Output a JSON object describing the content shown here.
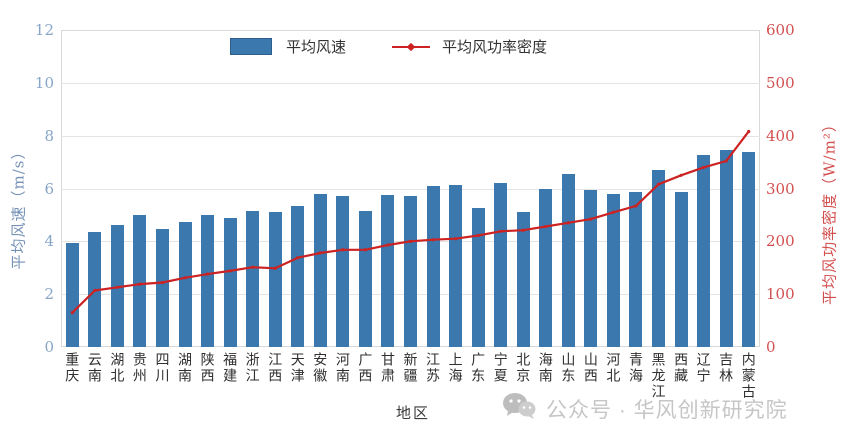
{
  "chart_data": {
    "type": "bar",
    "categories": [
      "重庆",
      "云南",
      "湖北",
      "贵州",
      "四川",
      "湖南",
      "陕西",
      "福建",
      "浙江",
      "江西",
      "天津",
      "安徽",
      "河南",
      "广西",
      "甘肃",
      "新疆",
      "江苏",
      "上海",
      "广东",
      "宁夏",
      "北京",
      "海南",
      "山东",
      "山西",
      "河北",
      "青海",
      "黑龙江",
      "西藏",
      "辽宁",
      "吉林",
      "内蒙古"
    ],
    "series": [
      {
        "name": "平均风速",
        "type": "bar",
        "axis": "left",
        "unit": "m/s",
        "color": "#3a78ae",
        "values": [
          3.95,
          4.35,
          4.6,
          5.0,
          4.45,
          4.75,
          5.0,
          4.9,
          5.15,
          5.1,
          5.35,
          5.8,
          5.7,
          5.15,
          5.75,
          5.7,
          6.1,
          6.15,
          5.25,
          6.2,
          5.1,
          6.0,
          6.55,
          5.95,
          5.8,
          5.85,
          6.7,
          5.85,
          7.25,
          7.45,
          7.4
        ]
      },
      {
        "name": "平均风功率密度",
        "type": "line",
        "axis": "right",
        "unit": "W/m²",
        "color": "#cc2222",
        "values": [
          65,
          107,
          113,
          119,
          122,
          131,
          138,
          144,
          151,
          149,
          169,
          178,
          184,
          184,
          193,
          200,
          203,
          205,
          211,
          219,
          221,
          228,
          235,
          242,
          255,
          267,
          308,
          325,
          340,
          352,
          408
        ]
      }
    ],
    "left_axis": {
      "label": "平均风速（m/s）",
      "min": 0,
      "max": 12,
      "ticks": [
        0,
        2,
        4,
        6,
        8,
        10,
        12
      ],
      "tick_color": "#87a5c6"
    },
    "right_axis": {
      "label": "平均风功率密度（W/m²）",
      "min": 0,
      "max": 600,
      "ticks": [
        0,
        100,
        200,
        300,
        400,
        500,
        600
      ],
      "tick_color": "#d34f4f"
    },
    "xlabel": "地区",
    "grid": true,
    "legend_position": "top-center"
  },
  "watermark": {
    "text": "公众号 · 华风创新研究院"
  }
}
